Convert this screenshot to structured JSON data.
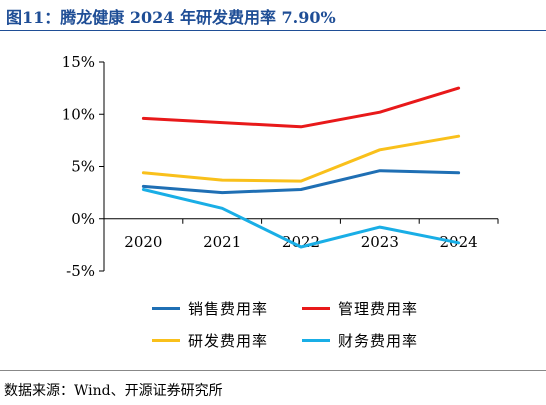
{
  "title": "图11：腾龙健康 2024 年研发费用率 7.90%",
  "source": "数据来源：Wind、开源证券研究所",
  "chart_data": {
    "type": "line",
    "x": [
      "2020",
      "2021",
      "2022",
      "2023",
      "2024"
    ],
    "ylim": [
      -5,
      15
    ],
    "yticks": [
      -5,
      0,
      5,
      10,
      15
    ],
    "ytick_labels": [
      "-5%",
      "0%",
      "5%",
      "10%",
      "15%"
    ],
    "grid": false,
    "legend_position": "bottom",
    "series": [
      {
        "name": "销售费用率",
        "color": "#1f6fb4",
        "values": [
          3.1,
          2.5,
          2.8,
          4.6,
          4.4
        ]
      },
      {
        "name": "管理费用率",
        "color": "#e8191a",
        "values": [
          9.6,
          9.2,
          8.8,
          10.2,
          12.5
        ]
      },
      {
        "name": "研发费用率",
        "color": "#f9c01b",
        "values": [
          4.4,
          3.7,
          3.6,
          6.6,
          7.9
        ]
      },
      {
        "name": "财务费用率",
        "color": "#19aee6",
        "values": [
          2.8,
          1.0,
          -2.7,
          -0.8,
          -2.3
        ]
      }
    ]
  }
}
